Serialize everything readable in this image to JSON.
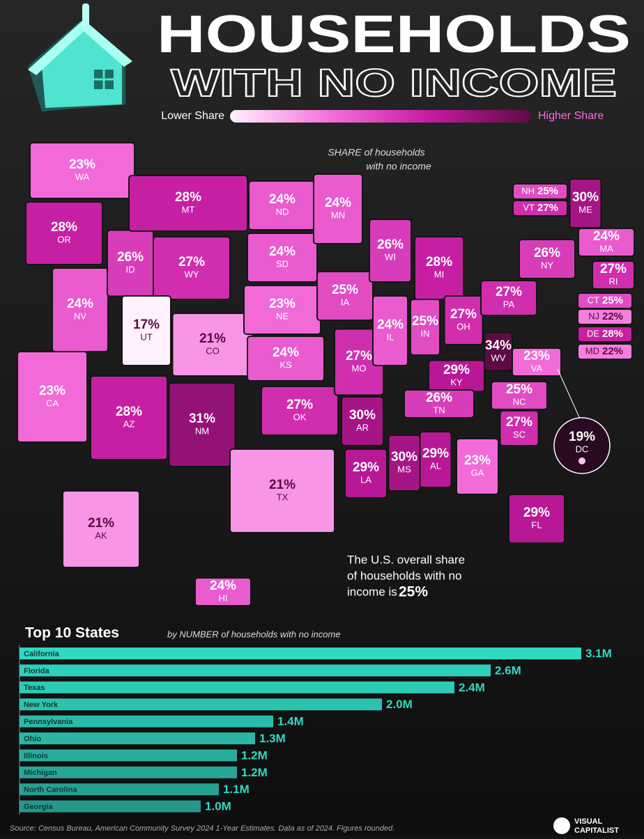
{
  "header": {
    "title": "HOUSEHOLDS",
    "subtitle": "WITH NO INCOME"
  },
  "legend": {
    "low": "Lower Share",
    "high": "Higher Share",
    "colors": [
      "#fff1fd",
      "#f56fdc",
      "#c41aa0",
      "#5e0a45"
    ]
  },
  "map": {
    "annotation": [
      "SHARE of households",
      "with no income"
    ],
    "states": [
      {
        "abbr": "WA",
        "value": 23,
        "label": "23%"
      },
      {
        "abbr": "OR",
        "value": 28,
        "label": "28%"
      },
      {
        "abbr": "CA",
        "value": 23,
        "label": "23%"
      },
      {
        "abbr": "NV",
        "value": 24,
        "label": "24%"
      },
      {
        "abbr": "ID",
        "value": 26,
        "label": "26%"
      },
      {
        "abbr": "MT",
        "value": 28,
        "label": "28%"
      },
      {
        "abbr": "WY",
        "value": 27,
        "label": "27%"
      },
      {
        "abbr": "UT",
        "value": 17,
        "label": "17%"
      },
      {
        "abbr": "CO",
        "value": 21,
        "label": "21%"
      },
      {
        "abbr": "AZ",
        "value": 28,
        "label": "28%"
      },
      {
        "abbr": "NM",
        "value": 31,
        "label": "31%"
      },
      {
        "abbr": "ND",
        "value": 24,
        "label": "24%"
      },
      {
        "abbr": "SD",
        "value": 24,
        "label": "24%"
      },
      {
        "abbr": "NE",
        "value": 23,
        "label": "23%"
      },
      {
        "abbr": "KS",
        "value": 24,
        "label": "24%"
      },
      {
        "abbr": "OK",
        "value": 27,
        "label": "27%"
      },
      {
        "abbr": "TX",
        "value": 21,
        "label": "21%"
      },
      {
        "abbr": "MN",
        "value": 24,
        "label": "24%"
      },
      {
        "abbr": "IA",
        "value": 25,
        "label": "25%"
      },
      {
        "abbr": "MO",
        "value": 27,
        "label": "27%"
      },
      {
        "abbr": "AR",
        "value": 30,
        "label": "30%"
      },
      {
        "abbr": "LA",
        "value": 29,
        "label": "29%"
      },
      {
        "abbr": "WI",
        "value": 26,
        "label": "26%"
      },
      {
        "abbr": "IL",
        "value": 24,
        "label": "24%"
      },
      {
        "abbr": "MI",
        "value": 28,
        "label": "28%"
      },
      {
        "abbr": "IN",
        "value": 25,
        "label": "25%"
      },
      {
        "abbr": "OH",
        "value": 27,
        "label": "27%"
      },
      {
        "abbr": "KY",
        "value": 29,
        "label": "29%"
      },
      {
        "abbr": "TN",
        "value": 26,
        "label": "26%"
      },
      {
        "abbr": "MS",
        "value": 30,
        "label": "30%"
      },
      {
        "abbr": "AL",
        "value": 29,
        "label": "29%"
      },
      {
        "abbr": "GA",
        "value": 23,
        "label": "23%"
      },
      {
        "abbr": "FL",
        "value": 29,
        "label": "29%"
      },
      {
        "abbr": "SC",
        "value": 27,
        "label": "27%"
      },
      {
        "abbr": "NC",
        "value": 25,
        "label": "25%"
      },
      {
        "abbr": "VA",
        "value": 23,
        "label": "23%"
      },
      {
        "abbr": "WV",
        "value": 34,
        "label": "34%"
      },
      {
        "abbr": "PA",
        "value": 27,
        "label": "27%"
      },
      {
        "abbr": "NY",
        "value": 26,
        "label": "26%"
      },
      {
        "abbr": "ME",
        "value": 30,
        "label": "30%"
      },
      {
        "abbr": "NH",
        "value": 25,
        "label": "25%"
      },
      {
        "abbr": "VT",
        "value": 27,
        "label": "27%"
      },
      {
        "abbr": "MA",
        "value": 24,
        "label": "24%"
      },
      {
        "abbr": "RI",
        "value": 27,
        "label": "27%"
      },
      {
        "abbr": "CT",
        "value": 25,
        "label": "25%"
      },
      {
        "abbr": "NJ",
        "value": 22,
        "label": "22%"
      },
      {
        "abbr": "DE",
        "value": 28,
        "label": "28%"
      },
      {
        "abbr": "MD",
        "value": 22,
        "label": "22%"
      },
      {
        "abbr": "DC",
        "value": 19,
        "label": "19%"
      },
      {
        "abbr": "AK",
        "value": 21,
        "label": "21%"
      },
      {
        "abbr": "HI",
        "value": 24,
        "label": "24%"
      }
    ],
    "note": {
      "lines": [
        "The U.S. overall share",
        "of households with no",
        "income is"
      ],
      "overall": "25%"
    }
  },
  "chart_data": {
    "type": "bar",
    "title": "Top 10 States",
    "subtitle": "by NUMBER of households with no income",
    "categories": [
      "California",
      "Florida",
      "Texas",
      "New York",
      "Pennsylvania",
      "Ohio",
      "Illinois",
      "Michigan",
      "North Carolina",
      "Georgia"
    ],
    "values": [
      3.1,
      2.6,
      2.4,
      2.0,
      1.4,
      1.3,
      1.2,
      1.2,
      1.1,
      1.0
    ],
    "value_labels": [
      "3.1M",
      "2.6M",
      "2.4M",
      "2.0M",
      "1.4M",
      "1.3M",
      "1.2M",
      "1.2M",
      "1.1M",
      "1.0M"
    ],
    "color": "#2fd9c2"
  },
  "source": "Source: Census Bureau, American Community Survey 2024 1-Year Estimates. Data as of 2024. Figures rounded.",
  "brand": [
    "VISUAL",
    "CAPITALIST"
  ]
}
